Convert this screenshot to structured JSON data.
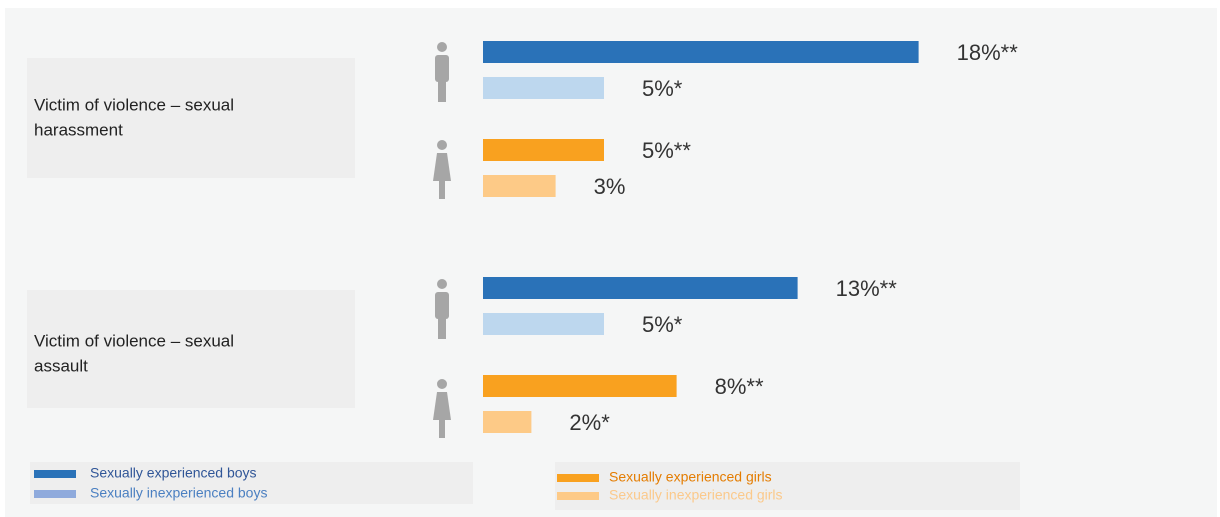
{
  "chart_data": {
    "type": "grouped-hbar",
    "categories": [
      [
        "Victim of violence – sexual",
        "harassment"
      ],
      [
        "Victim of violence – sexual",
        "assault"
      ]
    ],
    "series": [
      {
        "name": "Sexually experienced boys",
        "color": "#2a72b8",
        "values": [
          18,
          13
        ],
        "value_labels": [
          "18%**",
          "13%**"
        ]
      },
      {
        "name": "Sexually inexperienced boys",
        "color": "#bdd7ee",
        "values": [
          5,
          5
        ],
        "value_labels": [
          "5%*",
          "5%*"
        ]
      },
      {
        "name": "Sexually experienced girls",
        "color": "#f9a11f",
        "values": [
          5,
          8
        ],
        "value_labels": [
          "5%**",
          "8%**"
        ]
      },
      {
        "name": "Sexually inexperienced girls",
        "color": "#fdca87",
        "values": [
          3,
          2
        ],
        "value_labels": [
          "3%",
          "2%*"
        ]
      }
    ]
  }
}
